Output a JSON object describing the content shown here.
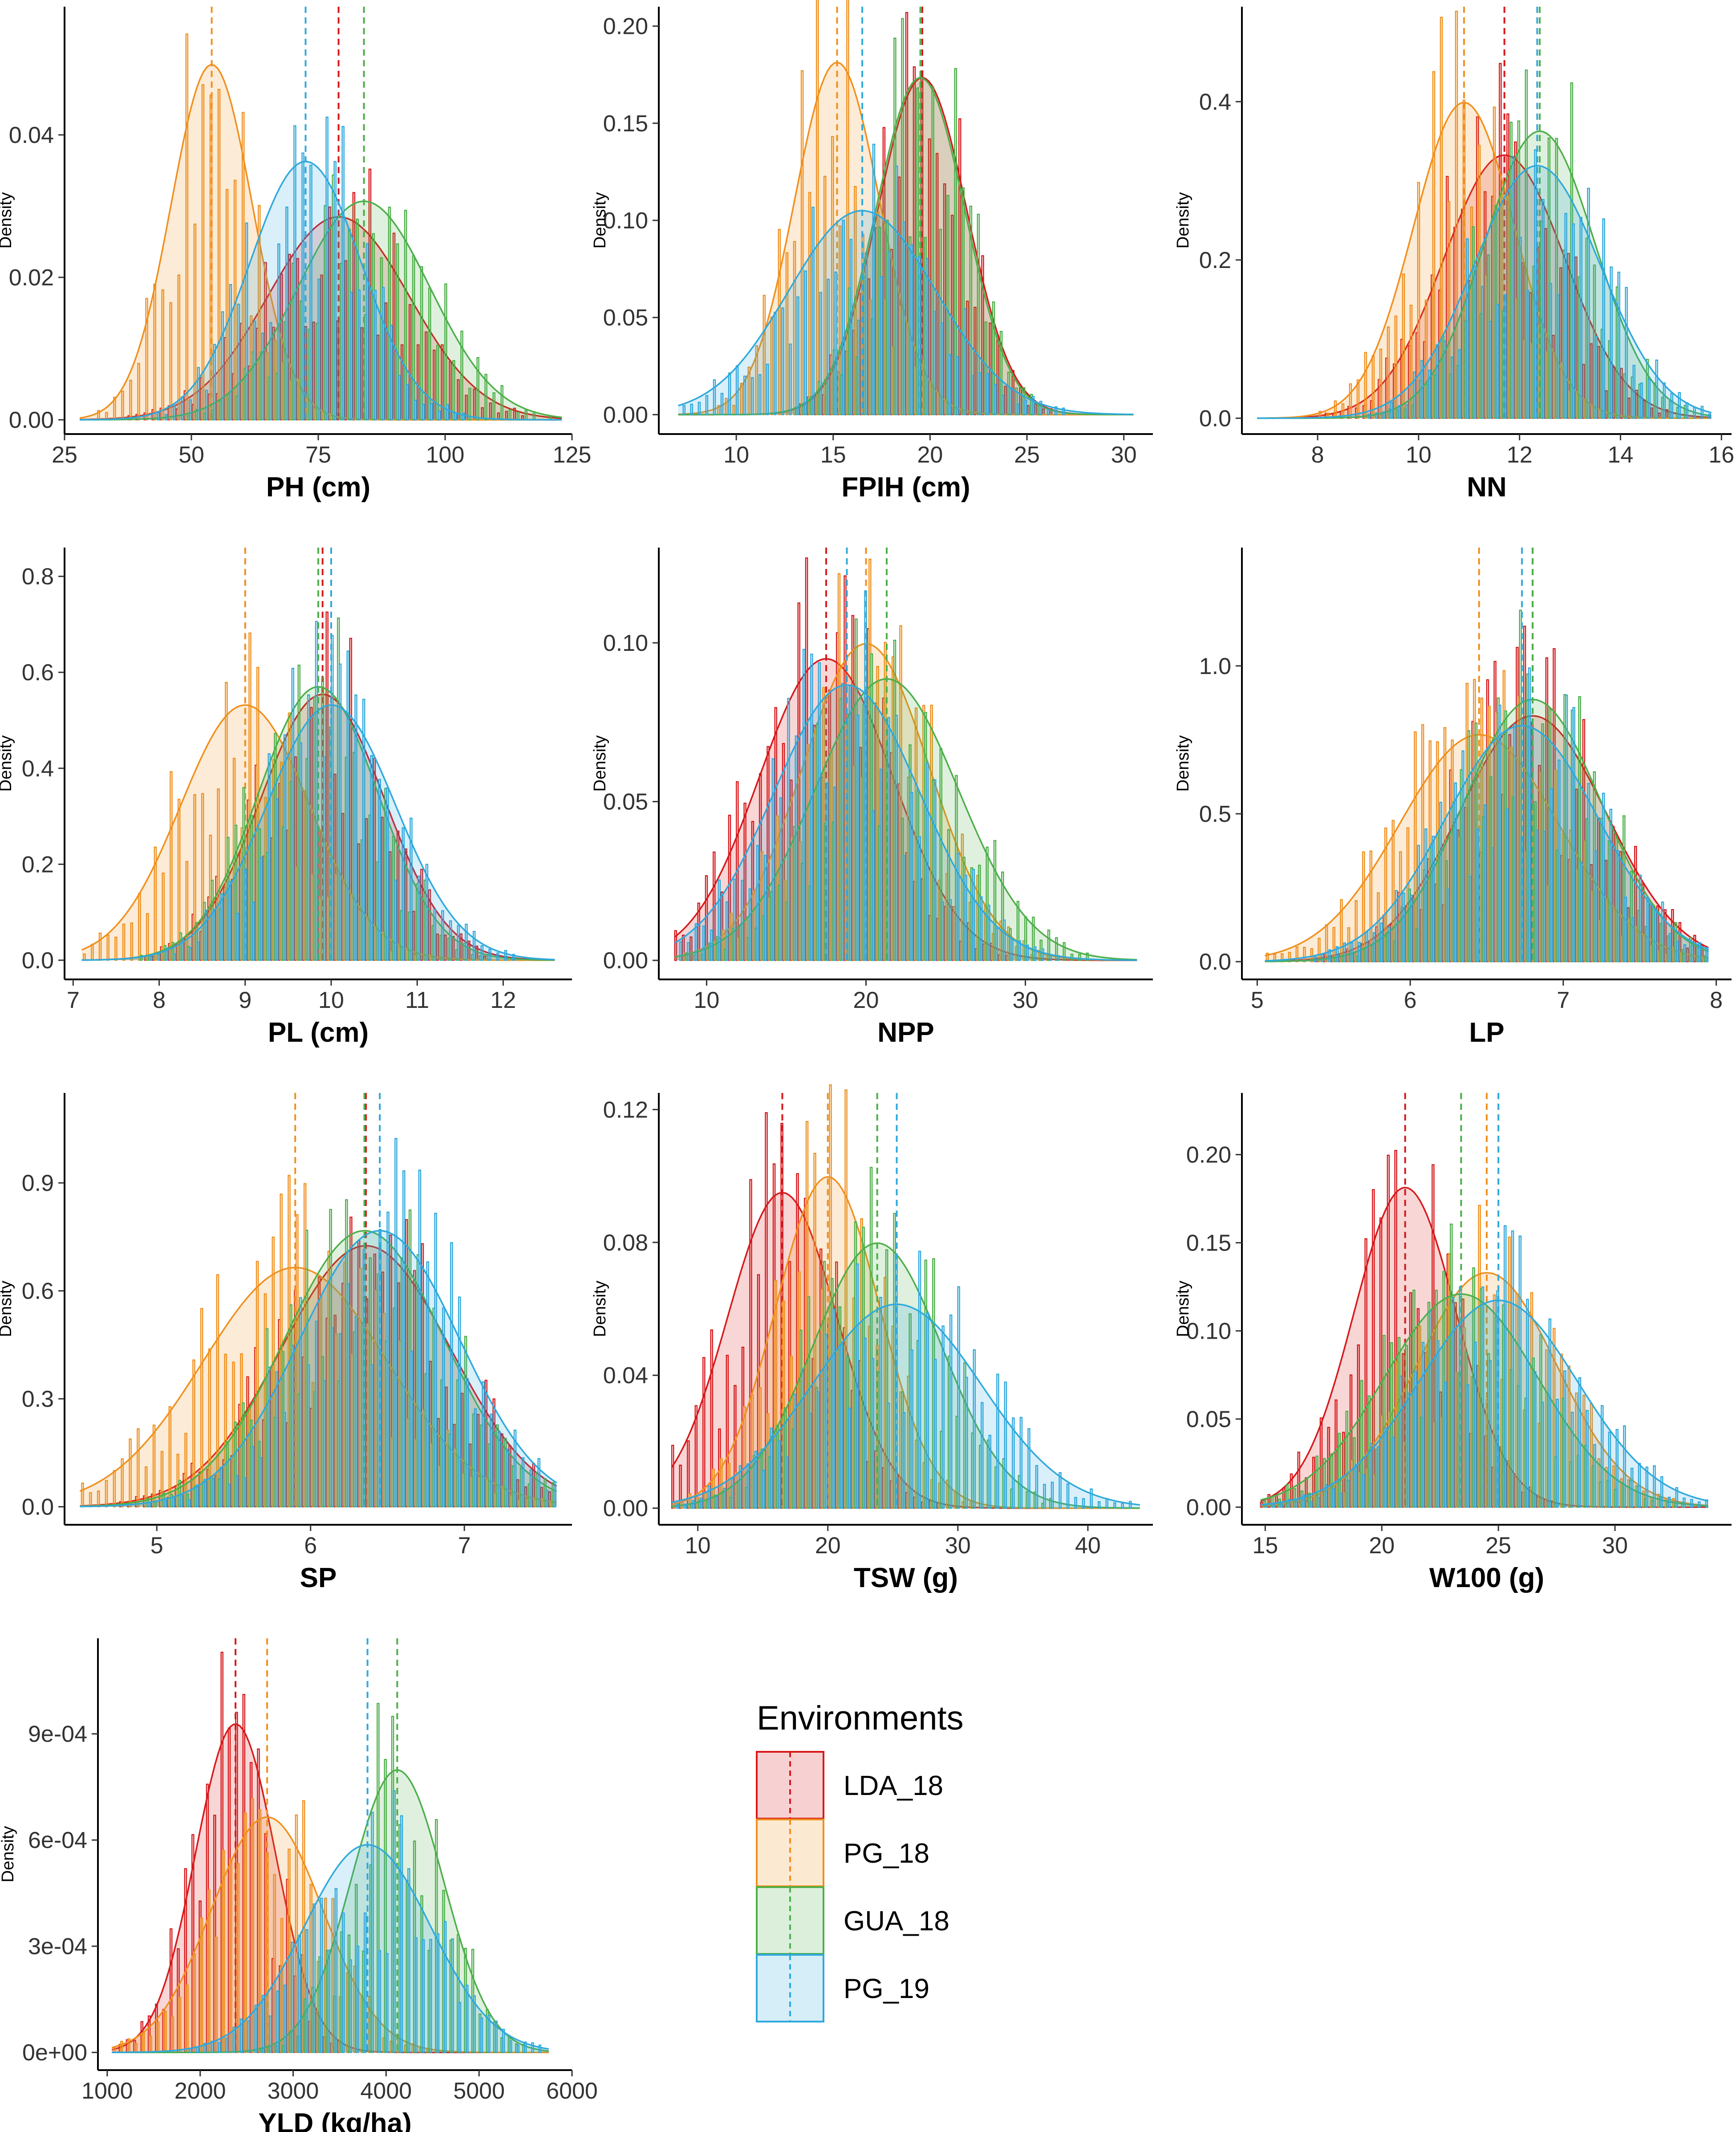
{
  "figure": {
    "legend_title": "Environments",
    "y_axis_label": "Density"
  },
  "series": [
    {
      "name": "LDA_18",
      "color": "#D7191C"
    },
    {
      "name": "PG_18",
      "color": "#F0901E"
    },
    {
      "name": "GUA_18",
      "color": "#4DAF4A"
    },
    {
      "name": "PG_19",
      "color": "#2FA9DC"
    }
  ],
  "chart_data": [
    {
      "type": "histogram-density",
      "xlabel": "PH (cm)",
      "ylabel": "Density",
      "xlim": [
        25,
        125
      ],
      "ylim": [
        -0.002,
        0.058
      ],
      "xticks": [
        25,
        50,
        75,
        100,
        125
      ],
      "yticks": [
        0.0,
        0.02,
        0.04
      ],
      "ytick_labels": [
        "0.00",
        "0.02",
        "0.04"
      ],
      "data_range": [
        28,
        123
      ],
      "means": [
        79,
        54,
        84,
        72.5
      ],
      "sds": [
        14,
        8,
        13,
        11
      ]
    },
    {
      "type": "histogram-density",
      "xlabel": "FPIH (cm)",
      "ylabel": "Density",
      "xlim": [
        6,
        31.5
      ],
      "ylim": [
        -0.01,
        0.21
      ],
      "xticks": [
        10,
        15,
        20,
        25,
        30
      ],
      "yticks": [
        0.0,
        0.05,
        0.1,
        0.15,
        0.2
      ],
      "ytick_labels": [
        "0.00",
        "0.05",
        "0.10",
        "0.15",
        "0.20"
      ],
      "data_range": [
        7,
        30.5
      ],
      "means": [
        19.6,
        15.2,
        19.5,
        16.5
      ],
      "sds": [
        2.3,
        2.2,
        2.3,
        3.8
      ]
    },
    {
      "type": "histogram-density",
      "xlabel": "NN",
      "ylabel": "Density",
      "xlim": [
        6.5,
        16.2
      ],
      "ylim": [
        -0.02,
        0.52
      ],
      "xticks": [
        8,
        10,
        12,
        14,
        16
      ],
      "yticks": [
        0.0,
        0.2,
        0.4
      ],
      "ytick_labels": [
        "0.0",
        "0.2",
        "0.4"
      ],
      "data_range": [
        6.8,
        15.8
      ],
      "means": [
        11.7,
        10.9,
        12.4,
        12.35
      ],
      "sds": [
        1.2,
        1.0,
        1.1,
        1.25
      ]
    },
    {
      "type": "histogram-density",
      "xlabel": "PL (cm)",
      "ylabel": "Density",
      "xlim": [
        6.9,
        12.8
      ],
      "ylim": [
        -0.04,
        0.86
      ],
      "xticks": [
        7,
        8,
        9,
        10,
        11,
        12
      ],
      "yticks": [
        0.0,
        0.2,
        0.4,
        0.6,
        0.8
      ],
      "ytick_labels": [
        "0.0",
        "0.2",
        "0.4",
        "0.6",
        "0.8"
      ],
      "data_range": [
        7.1,
        12.6
      ],
      "means": [
        9.9,
        9.0,
        9.85,
        10.0
      ],
      "sds": [
        0.72,
        0.75,
        0.7,
        0.75
      ]
    },
    {
      "type": "histogram-density",
      "xlabel": "NPP",
      "ylabel": "Density",
      "xlim": [
        7,
        38
      ],
      "ylim": [
        -0.006,
        0.13
      ],
      "xticks": [
        10,
        20,
        30
      ],
      "yticks": [
        0.0,
        0.05,
        0.1
      ],
      "ytick_labels": [
        "0.00",
        "0.05",
        "0.10"
      ],
      "data_range": [
        8,
        37
      ],
      "means": [
        17.5,
        20.0,
        21.3,
        18.8
      ],
      "sds": [
        4.2,
        4.0,
        4.5,
        4.6
      ]
    },
    {
      "type": "histogram-density",
      "xlabel": "LP",
      "ylabel": "Density",
      "xlim": [
        4.9,
        8.1
      ],
      "ylim": [
        -0.06,
        1.4
      ],
      "xticks": [
        5,
        6,
        7,
        8
      ],
      "yticks": [
        0.0,
        0.5,
        1.0
      ],
      "ytick_labels": [
        "0.0",
        "0.5",
        "1.0"
      ],
      "data_range": [
        5.05,
        7.95
      ],
      "means": [
        6.8,
        6.45,
        6.8,
        6.73
      ],
      "sds": [
        0.48,
        0.52,
        0.45,
        0.5
      ]
    },
    {
      "type": "histogram-density",
      "xlabel": "SP",
      "ylabel": "Density",
      "xlim": [
        4.4,
        7.7
      ],
      "ylim": [
        -0.05,
        1.15
      ],
      "xticks": [
        5,
        6,
        7
      ],
      "yticks": [
        0.0,
        0.3,
        0.6,
        0.9
      ],
      "ytick_labels": [
        "0.0",
        "0.3",
        "0.6",
        "0.9"
      ],
      "data_range": [
        4.5,
        7.6
      ],
      "means": [
        6.36,
        5.9,
        6.35,
        6.45
      ],
      "sds": [
        0.55,
        0.6,
        0.52,
        0.52
      ]
    },
    {
      "type": "histogram-density",
      "xlabel": "TSW (g)",
      "ylabel": "Density",
      "xlim": [
        7,
        45
      ],
      "ylim": [
        -0.005,
        0.125
      ],
      "xticks": [
        10,
        20,
        30,
        40
      ],
      "yticks": [
        0.0,
        0.04,
        0.08,
        0.12
      ],
      "ytick_labels": [
        "0.00",
        "0.04",
        "0.08",
        "0.12"
      ],
      "data_range": [
        8,
        44
      ],
      "means": [
        16.5,
        20.0,
        23.8,
        25.3
      ],
      "sds": [
        4.2,
        4.0,
        5.0,
        6.5
      ]
    },
    {
      "type": "histogram-density",
      "xlabel": "W100 (g)",
      "ylabel": "Density",
      "xlim": [
        14,
        35
      ],
      "ylim": [
        -0.01,
        0.235
      ],
      "xticks": [
        15,
        20,
        25,
        30
      ],
      "yticks": [
        0.0,
        0.05,
        0.1,
        0.15,
        0.2
      ],
      "ytick_labels": [
        "0.00",
        "0.05",
        "0.10",
        "0.15",
        "0.20"
      ],
      "data_range": [
        14.8,
        34
      ],
      "means": [
        21.0,
        24.5,
        23.4,
        25.0
      ],
      "sds": [
        2.2,
        3.0,
        3.3,
        3.4
      ]
    },
    {
      "type": "histogram-density",
      "xlabel": "YLD (kg/ha)",
      "ylabel": "Density",
      "xlim": [
        900,
        6000
      ],
      "ylim": [
        -5e-05,
        0.00117
      ],
      "xticks": [
        1000,
        2000,
        3000,
        4000,
        5000,
        6000
      ],
      "yticks": [
        0.0,
        0.0003,
        0.0006,
        0.0009
      ],
      "ytick_labels": [
        "0e+00",
        "3e-04",
        "6e-04",
        "9e-04"
      ],
      "data_range": [
        1050,
        5750
      ],
      "means": [
        2380,
        2720,
        4120,
        3800
      ],
      "sds": [
        430,
        600,
        500,
        680
      ]
    }
  ]
}
